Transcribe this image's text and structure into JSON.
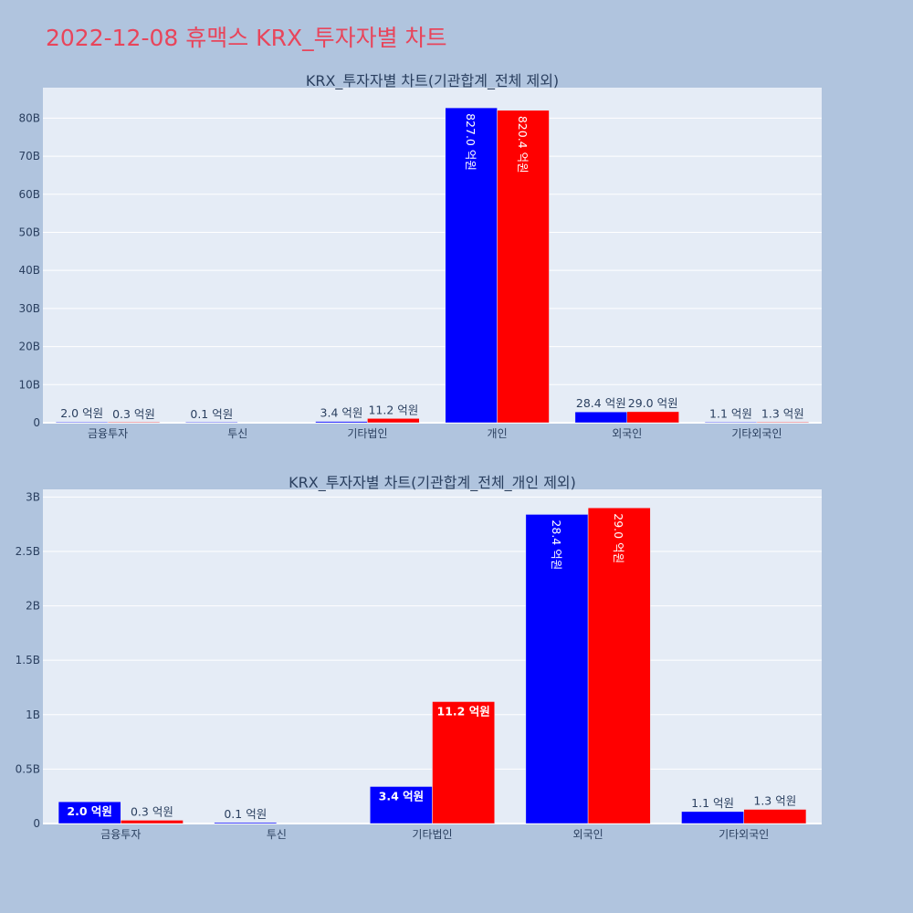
{
  "page": {
    "title": "2022-12-08 휴맥스 KRX_투자자별 차트"
  },
  "colors": {
    "background": "#b0c4de",
    "plot_bg": "#e5ecf6",
    "title": "#e8455b",
    "series_a": "#0000ff",
    "series_b": "#ff0000"
  },
  "chart_data": [
    {
      "type": "bar",
      "title": "KRX_투자자별 차트(기관합계_전체 제외)",
      "categories": [
        "금융투자",
        "투신",
        "기타법인",
        "개인",
        "외국인",
        "기타외국인"
      ],
      "ylim": [
        0,
        88
      ],
      "yticks": [
        0,
        10,
        20,
        30,
        40,
        50,
        60,
        70,
        80
      ],
      "ytick_labels": [
        "0",
        "10B",
        "20B",
        "30B",
        "40B",
        "50B",
        "60B",
        "70B",
        "80B"
      ],
      "grid": true,
      "series": [
        {
          "color": "#0000ff",
          "values": [
            0.2,
            0.01,
            0.34,
            82.7,
            2.84,
            0.11
          ],
          "labels": [
            "2.0 억원",
            "0.1 억원",
            "3.4 억원",
            "827.0 억원",
            "28.4 억원",
            "1.1 억원"
          ]
        },
        {
          "color": "#ff0000",
          "values": [
            0.03,
            null,
            1.12,
            82.04,
            2.9,
            0.13
          ],
          "labels": [
            "0.3 억원",
            "",
            "11.2 억원",
            "820.4 억원",
            "29.0 억원",
            "1.3 억원"
          ]
        }
      ]
    },
    {
      "type": "bar",
      "title": "KRX_투자자별 차트(기관합계_전체_개인 제외)",
      "categories": [
        "금융투자",
        "투신",
        "기타법인",
        "외국인",
        "기타외국인"
      ],
      "ylim": [
        0,
        3.07
      ],
      "yticks": [
        0,
        0.5,
        1,
        1.5,
        2,
        2.5,
        3
      ],
      "ytick_labels": [
        "0",
        "0.5B",
        "1B",
        "1.5B",
        "2B",
        "2.5B",
        "3B"
      ],
      "grid": true,
      "series": [
        {
          "color": "#0000ff",
          "values": [
            0.2,
            0.01,
            0.34,
            2.84,
            0.11
          ],
          "labels": [
            "2.0 억원",
            "0.1 억원",
            "3.4 억원",
            "28.4 억원",
            "1.1 억원"
          ]
        },
        {
          "color": "#ff0000",
          "values": [
            0.03,
            null,
            1.12,
            2.9,
            0.13
          ],
          "labels": [
            "0.3 억원",
            "",
            "11.2 억원",
            "29.0 억원",
            "1.3 억원"
          ]
        }
      ]
    }
  ]
}
